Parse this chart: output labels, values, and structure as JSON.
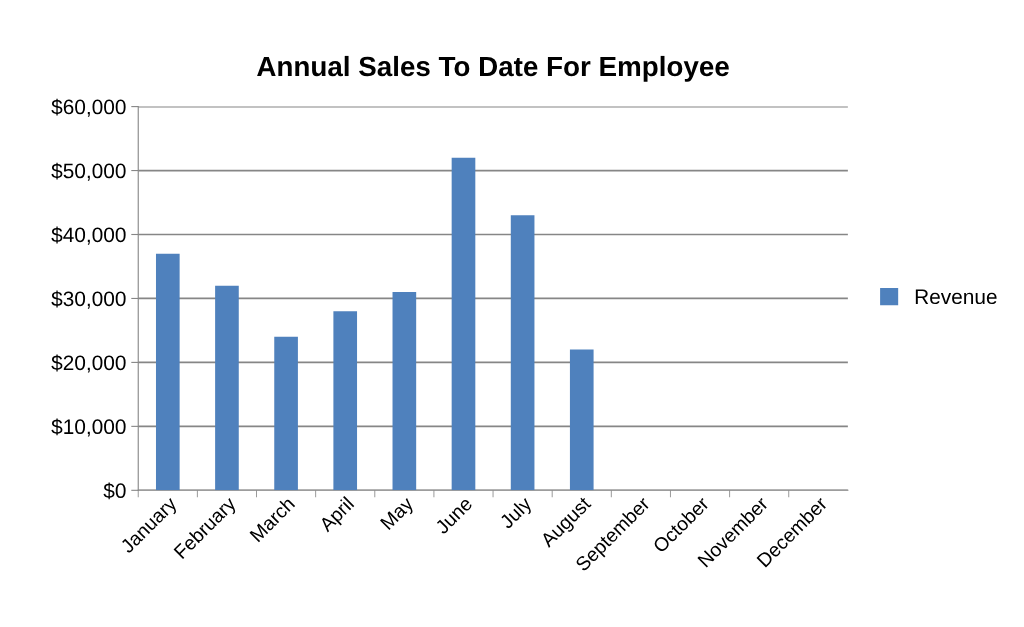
{
  "chart_data": {
    "type": "bar",
    "title": "Annual Sales To Date For Employee",
    "categories": [
      "January",
      "February",
      "March",
      "April",
      "May",
      "June",
      "July",
      "August",
      "September",
      "October",
      "November",
      "December"
    ],
    "series": [
      {
        "name": "Revenue",
        "color": "#4f81bd",
        "values": [
          37000,
          32000,
          24000,
          28000,
          31000,
          52000,
          43000,
          22000,
          null,
          null,
          null,
          null
        ]
      }
    ],
    "ylim": [
      0,
      60000
    ],
    "yticks": [
      {
        "value": 0,
        "label": "$0"
      },
      {
        "value": 10000,
        "label": "$10,000"
      },
      {
        "value": 20000,
        "label": "$20,000"
      },
      {
        "value": 30000,
        "label": "$30,000"
      },
      {
        "value": 40000,
        "label": "$40,000"
      },
      {
        "value": 50000,
        "label": "$50,000"
      },
      {
        "value": 60000,
        "label": "$60,000"
      }
    ],
    "grid": "y",
    "legend": "right"
  }
}
